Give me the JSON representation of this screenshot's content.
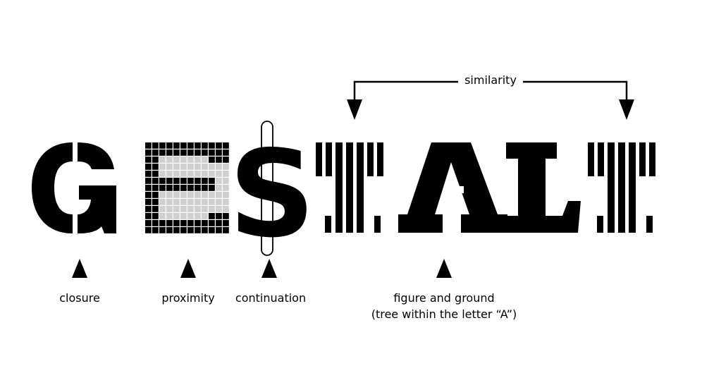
{
  "labels": {
    "similarity": "similarity",
    "closure": "closure",
    "proximity": "proximity",
    "continuation": "continuation",
    "figure_ground_line1": "figure and ground",
    "figure_ground_line2": "(tree within the letter “A”)"
  },
  "colors": {
    "ink": "#000000",
    "grid_light": "#cfcfcf",
    "background": "#ffffff"
  },
  "word": "GESTALT"
}
